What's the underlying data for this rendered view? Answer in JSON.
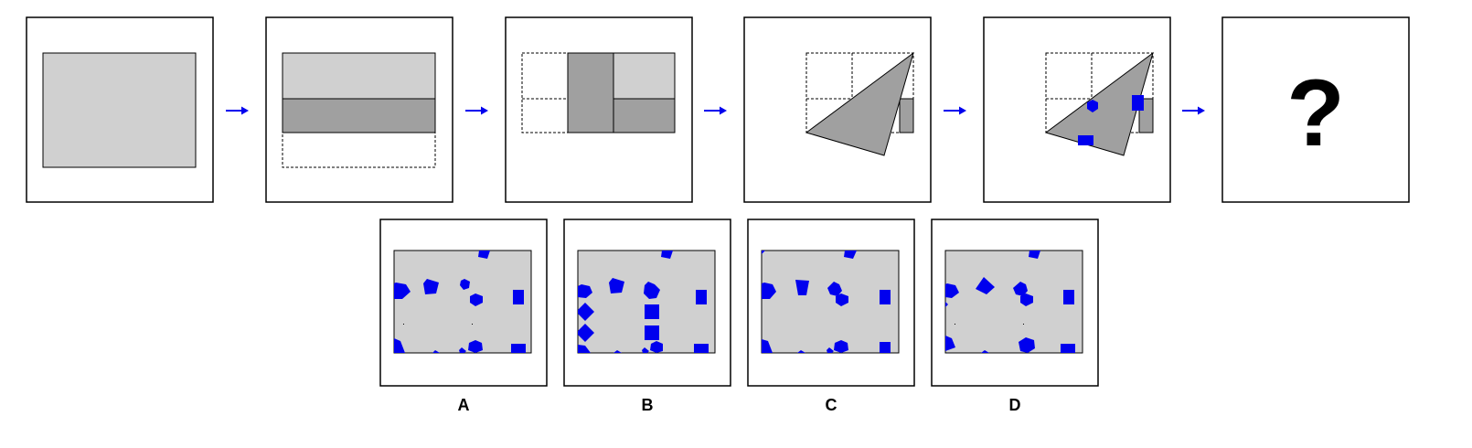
{
  "question_mark": "?",
  "options": [
    {
      "label": "A"
    },
    {
      "label": "B"
    },
    {
      "label": "C"
    },
    {
      "label": "D"
    }
  ],
  "colors": {
    "paper_light": "#d0d0d0",
    "paper_dark": "#a0a0a0",
    "hole": "#0000ee",
    "arrow": "#0000ee",
    "border": "#000000",
    "background": "#ffffff"
  },
  "icons": {
    "arrow": "right-arrow-icon",
    "question": "question-mark"
  }
}
